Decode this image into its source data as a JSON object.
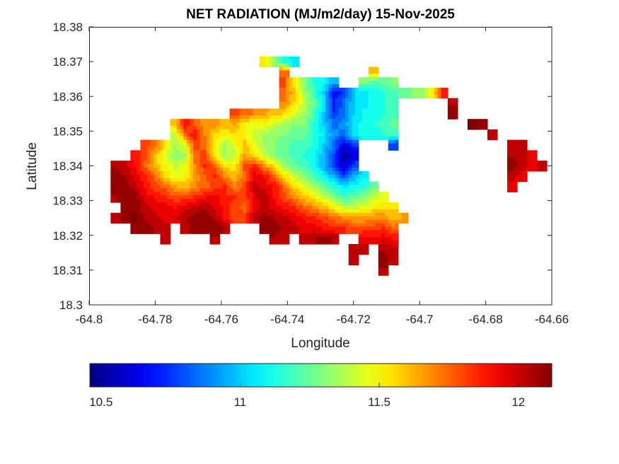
{
  "chart_data": {
    "type": "heatmap",
    "title": "NET RADIATION (MJ/m2/day) 15-Nov-2025",
    "xlabel": "Longitude",
    "ylabel": "Latitude",
    "xlim": [
      -64.8,
      -64.66
    ],
    "ylim": [
      18.3,
      18.38
    ],
    "xticks": [
      -64.8,
      -64.78,
      -64.76,
      -64.74,
      -64.72,
      -64.7,
      -64.68,
      -64.66
    ],
    "xtick_labels": [
      "-64.8",
      "-64.78",
      "-64.76",
      "-64.74",
      "-64.72",
      "-64.7",
      "-64.68",
      "-64.66"
    ],
    "yticks": [
      18.3,
      18.31,
      18.32,
      18.33,
      18.34,
      18.35,
      18.36,
      18.37,
      18.38
    ],
    "ytick_labels": [
      "18.3",
      "18.31",
      "18.32",
      "18.33",
      "18.34",
      "18.35",
      "18.36",
      "18.37",
      "18.38"
    ],
    "grid": false,
    "colormap": "jet",
    "colorbar": {
      "orientation": "horizontal",
      "placement": "bottom",
      "range": [
        10.46,
        12.12
      ],
      "ticks": [
        10.5,
        11,
        11.5,
        12
      ],
      "tick_labels": [
        "10.5",
        "11",
        "11.5",
        "12"
      ]
    },
    "grid_lon_start": -64.795,
    "grid_lon_step": 0.003,
    "grid_lat_start": 18.37,
    "grid_lat_step": -0.003,
    "values": [
      [
        null,
        null,
        null,
        null,
        null,
        null,
        null,
        null,
        null,
        null,
        null,
        null,
        null,
        null,
        null,
        null,
        11.55,
        11.3,
        11.15,
        11.05,
        null,
        null,
        null,
        null,
        null,
        null,
        null,
        null,
        null,
        null,
        null,
        null,
        null,
        null,
        null,
        null,
        null,
        null,
        null,
        null,
        null,
        null,
        null,
        null,
        null
      ],
      [
        null,
        null,
        null,
        null,
        null,
        null,
        null,
        null,
        null,
        null,
        null,
        null,
        null,
        null,
        null,
        null,
        null,
        null,
        11.75,
        null,
        null,
        null,
        null,
        null,
        null,
        null,
        null,
        11.6,
        null,
        null,
        null,
        null,
        null,
        null,
        null,
        null,
        null,
        null,
        null,
        null,
        null,
        null,
        null,
        null,
        null
      ],
      [
        null,
        null,
        null,
        null,
        null,
        null,
        null,
        null,
        null,
        null,
        null,
        null,
        null,
        null,
        null,
        null,
        null,
        null,
        11.8,
        11.5,
        11.3,
        11.15,
        11.1,
        10.95,
        null,
        null,
        11.3,
        11.2,
        11.25,
        11.3,
        null,
        null,
        null,
        null,
        null,
        null,
        null,
        null,
        null,
        null,
        null,
        null,
        null,
        null,
        null
      ],
      [
        null,
        null,
        null,
        null,
        null,
        null,
        null,
        null,
        null,
        null,
        null,
        null,
        null,
        null,
        null,
        null,
        null,
        null,
        11.75,
        11.6,
        11.35,
        11.2,
        11.0,
        10.7,
        10.75,
        11.0,
        11.05,
        11.1,
        11.15,
        11.2,
        11.25,
        11.3,
        11.35,
        11.55,
        11.85,
        null,
        null,
        null,
        null,
        null,
        null,
        null,
        null,
        null,
        null
      ],
      [
        null,
        null,
        null,
        null,
        null,
        null,
        null,
        null,
        null,
        null,
        null,
        null,
        null,
        null,
        null,
        null,
        null,
        null,
        11.7,
        11.55,
        11.4,
        11.25,
        11.05,
        10.7,
        10.85,
        11.0,
        11.05,
        11.1,
        11.15,
        11.2,
        null,
        null,
        null,
        null,
        null,
        12.05,
        null,
        null,
        null,
        null,
        null,
        null,
        null,
        null,
        null
      ],
      [
        null,
        null,
        null,
        null,
        null,
        null,
        null,
        null,
        null,
        null,
        null,
        null,
        null,
        11.8,
        11.75,
        11.7,
        11.65,
        11.6,
        11.55,
        11.45,
        11.35,
        11.2,
        11.0,
        10.75,
        10.85,
        11.0,
        11.1,
        11.1,
        11.15,
        11.2,
        null,
        null,
        null,
        null,
        null,
        12.1,
        null,
        null,
        null,
        null,
        null,
        null,
        null,
        null,
        null
      ],
      [
        null,
        null,
        null,
        null,
        null,
        null,
        null,
        11.6,
        11.9,
        11.75,
        11.65,
        11.7,
        11.6,
        11.65,
        11.5,
        11.45,
        11.5,
        11.4,
        11.35,
        11.3,
        11.3,
        11.15,
        11.0,
        10.85,
        10.9,
        11.05,
        11.1,
        11.15,
        11.2,
        11.25,
        null,
        null,
        null,
        null,
        null,
        null,
        null,
        12.15,
        12.1,
        null,
        null,
        null,
        null,
        null,
        null
      ],
      [
        null,
        null,
        null,
        null,
        null,
        null,
        null,
        11.4,
        11.75,
        11.9,
        11.7,
        11.55,
        11.5,
        11.55,
        11.5,
        11.4,
        11.35,
        11.3,
        11.3,
        11.25,
        11.25,
        11.15,
        11.05,
        10.9,
        10.85,
        11.05,
        11.1,
        11.1,
        11.15,
        11.2,
        null,
        null,
        null,
        null,
        null,
        null,
        null,
        null,
        null,
        12.0,
        null,
        null,
        null,
        null,
        null
      ],
      [
        null,
        null,
        null,
        null,
        11.8,
        11.75,
        11.55,
        11.35,
        11.45,
        11.8,
        11.75,
        11.5,
        11.35,
        11.45,
        11.6,
        11.45,
        11.35,
        11.3,
        11.25,
        11.2,
        11.2,
        11.15,
        11.0,
        10.85,
        10.6,
        10.75,
        null,
        null,
        null,
        10.75,
        null,
        null,
        null,
        null,
        null,
        null,
        null,
        null,
        null,
        null,
        null,
        12.05,
        12.0,
        null,
        null
      ],
      [
        null,
        null,
        null,
        11.9,
        11.8,
        11.6,
        11.45,
        11.3,
        11.35,
        11.75,
        11.8,
        11.55,
        11.35,
        11.4,
        11.65,
        11.55,
        11.4,
        11.3,
        11.25,
        11.2,
        11.15,
        11.1,
        10.95,
        10.8,
        10.5,
        10.6,
        null,
        null,
        null,
        null,
        null,
        null,
        null,
        null,
        null,
        null,
        null,
        null,
        null,
        null,
        null,
        12.05,
        12.0,
        11.95,
        null
      ],
      [
        null,
        12.05,
        12.0,
        11.9,
        11.75,
        11.6,
        11.5,
        11.4,
        11.45,
        11.7,
        11.85,
        11.75,
        11.55,
        11.5,
        11.8,
        11.85,
        11.7,
        11.5,
        11.35,
        11.25,
        11.2,
        11.1,
        10.95,
        10.75,
        10.55,
        10.8,
        null,
        null,
        null,
        null,
        null,
        null,
        null,
        null,
        null,
        null,
        null,
        null,
        null,
        null,
        null,
        12.1,
        12.0,
        11.95,
        12.0
      ],
      [
        null,
        12.1,
        12.05,
        11.95,
        11.85,
        11.75,
        11.55,
        11.45,
        11.5,
        11.65,
        11.75,
        11.85,
        11.7,
        11.6,
        11.75,
        11.95,
        11.9,
        11.75,
        11.55,
        11.4,
        11.3,
        11.2,
        11.1,
        10.95,
        10.8,
        10.95,
        11.05,
        null,
        null,
        null,
        null,
        null,
        null,
        null,
        null,
        null,
        null,
        null,
        null,
        null,
        null,
        12.0,
        11.95,
        null,
        null
      ],
      [
        null,
        12.1,
        12.1,
        12.0,
        11.9,
        11.8,
        11.75,
        11.65,
        11.6,
        11.7,
        11.75,
        11.8,
        11.85,
        11.7,
        11.8,
        12.0,
        11.95,
        11.9,
        11.75,
        11.55,
        11.45,
        11.35,
        11.25,
        11.15,
        11.05,
        11.1,
        11.15,
        11.25,
        null,
        null,
        null,
        null,
        null,
        null,
        null,
        null,
        null,
        null,
        null,
        null,
        null,
        11.95,
        null,
        null,
        null
      ],
      [
        null,
        12.05,
        12.1,
        12.1,
        11.95,
        11.9,
        11.85,
        11.8,
        11.8,
        11.85,
        11.9,
        11.95,
        11.85,
        11.85,
        11.8,
        11.95,
        12.05,
        11.9,
        11.8,
        11.7,
        11.6,
        11.5,
        11.4,
        11.3,
        11.2,
        11.25,
        11.3,
        11.4,
        11.45,
        null,
        null,
        null,
        null,
        null,
        null,
        null,
        null,
        null,
        null,
        null,
        null,
        null,
        null,
        null,
        null
      ],
      [
        null,
        null,
        12.1,
        12.1,
        12.0,
        11.95,
        11.95,
        11.9,
        11.95,
        12.0,
        12.05,
        11.95,
        11.9,
        11.8,
        11.75,
        11.95,
        12.0,
        11.95,
        11.9,
        11.85,
        11.75,
        11.7,
        11.6,
        11.5,
        11.4,
        11.4,
        11.45,
        11.5,
        11.55,
        11.55,
        null,
        null,
        null,
        null,
        null,
        null,
        null,
        null,
        null,
        null,
        null,
        null,
        null,
        null,
        null
      ],
      [
        null,
        12.0,
        12.1,
        12.15,
        12.05,
        12.0,
        11.95,
        11.95,
        12.05,
        12.1,
        12.1,
        12.05,
        11.9,
        11.8,
        11.8,
        12.0,
        12.1,
        12.05,
        12.0,
        11.95,
        11.9,
        11.85,
        11.8,
        11.75,
        11.7,
        11.65,
        11.65,
        11.7,
        11.7,
        11.6,
        11.65,
        null,
        null,
        null,
        null,
        null,
        null,
        null,
        null,
        null,
        null,
        null,
        null,
        null,
        null
      ],
      [
        null,
        null,
        null,
        12.1,
        12.1,
        12.05,
        12.0,
        null,
        12.0,
        12.1,
        12.1,
        12.1,
        12.05,
        null,
        null,
        null,
        12.1,
        12.1,
        12.05,
        12.0,
        11.95,
        11.95,
        11.9,
        11.85,
        11.85,
        11.8,
        11.8,
        11.8,
        11.85,
        11.75,
        null,
        null,
        null,
        null,
        null,
        null,
        null,
        null,
        null,
        null,
        null,
        null,
        null,
        null,
        null
      ],
      [
        null,
        null,
        null,
        null,
        null,
        null,
        12.0,
        null,
        null,
        null,
        null,
        12.05,
        null,
        null,
        null,
        null,
        null,
        12.05,
        12.0,
        null,
        12.0,
        12.05,
        12.1,
        12.05,
        null,
        null,
        11.95,
        11.95,
        11.95,
        11.9,
        null,
        null,
        null,
        null,
        null,
        null,
        null,
        null,
        null,
        null,
        null,
        null,
        null,
        null,
        null
      ],
      [
        null,
        null,
        null,
        null,
        null,
        null,
        null,
        null,
        null,
        null,
        null,
        null,
        null,
        null,
        null,
        null,
        null,
        null,
        null,
        null,
        null,
        null,
        null,
        null,
        null,
        12.0,
        12.0,
        null,
        12.05,
        12.0,
        null,
        null,
        null,
        null,
        null,
        null,
        null,
        null,
        null,
        null,
        null,
        null,
        null,
        null,
        null
      ],
      [
        null,
        null,
        null,
        null,
        null,
        null,
        null,
        null,
        null,
        null,
        null,
        null,
        null,
        null,
        null,
        null,
        null,
        null,
        null,
        null,
        null,
        null,
        null,
        null,
        null,
        12.0,
        null,
        null,
        12.1,
        12.0,
        null,
        null,
        null,
        null,
        null,
        null,
        null,
        null,
        null,
        null,
        null,
        null,
        null,
        null,
        null
      ],
      [
        null,
        null,
        null,
        null,
        null,
        null,
        null,
        null,
        null,
        null,
        null,
        null,
        null,
        null,
        null,
        null,
        null,
        null,
        null,
        null,
        null,
        null,
        null,
        null,
        null,
        null,
        null,
        null,
        12.05,
        null,
        null,
        null,
        null,
        null,
        null,
        null,
        null,
        null,
        null,
        null,
        null,
        null,
        null,
        null,
        null
      ]
    ]
  }
}
